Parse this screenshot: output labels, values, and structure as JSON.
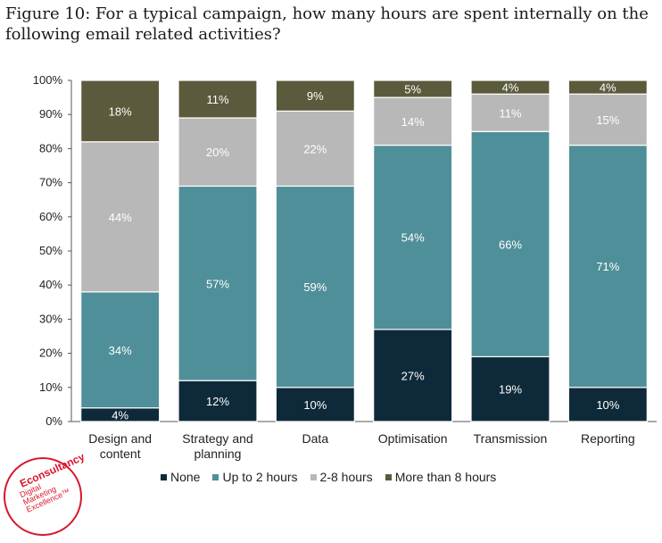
{
  "chart_data": {
    "type": "bar",
    "stacked": true,
    "title": "Figure 10: For a typical campaign, how many hours are spent internally on the following email related activities?",
    "categories": [
      [
        "Design and",
        "content"
      ],
      [
        "Strategy and",
        "planning"
      ],
      [
        "Data"
      ],
      [
        "Optimisation"
      ],
      [
        "Transmission"
      ],
      [
        "Reporting"
      ]
    ],
    "yticks": [
      "0%",
      "10%",
      "20%",
      "30%",
      "40%",
      "50%",
      "60%",
      "70%",
      "80%",
      "90%",
      "100%"
    ],
    "ylim": [
      0,
      100
    ],
    "series": [
      {
        "name": "None",
        "color": "#0e2a3a",
        "label_color": "#ffffff",
        "values": [
          4,
          12,
          10,
          27,
          19,
          10
        ]
      },
      {
        "name": "Up to 2 hours",
        "color": "#4f8f99",
        "label_color": "#ffffff",
        "values": [
          34,
          57,
          59,
          54,
          66,
          71
        ]
      },
      {
        "name": "2-8 hours",
        "color": "#b8b8b8",
        "label_color": "#ffffff",
        "values": [
          44,
          20,
          22,
          14,
          11,
          15
        ]
      },
      {
        "name": "More than 8 hours",
        "color": "#5b5a3c",
        "label_color": "#ffffff",
        "values": [
          18,
          11,
          9,
          5,
          4,
          4
        ]
      }
    ]
  },
  "logo": {
    "brand": "Econsultancy",
    "tagline": [
      "Digital",
      "Marketing",
      "Excellence™"
    ]
  }
}
